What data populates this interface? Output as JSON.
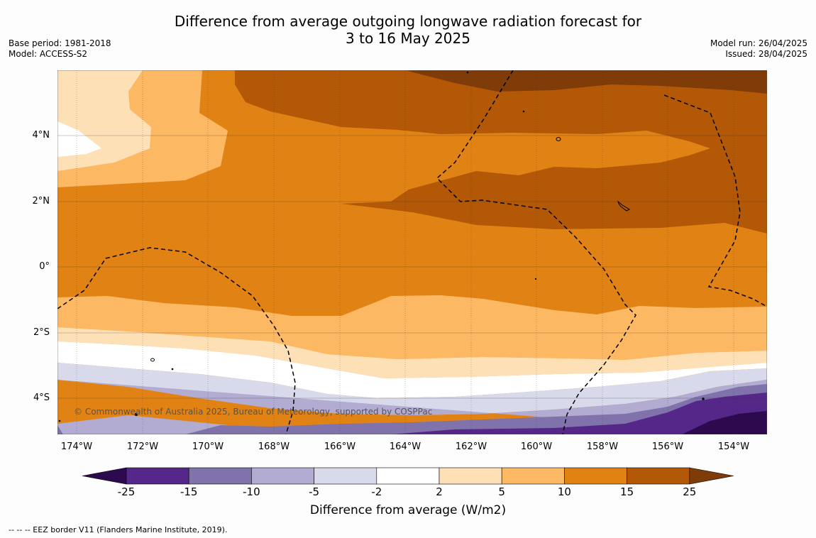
{
  "title_line1": "Difference from average outgoing longwave radiation forecast for",
  "title_line2": "3 to 16 May 2025",
  "base_period": "Base period: 1981-2018",
  "model": "Model: ACCESS-S2",
  "model_run": "Model run: 26/04/2025",
  "issued": "Issued: 28/04/2025",
  "lat_labels": [
    "4°N",
    "2°N",
    "0°",
    "2°S",
    "4°S"
  ],
  "lon_labels": [
    "174°W",
    "172°W",
    "170°W",
    "168°W",
    "166°W",
    "164°W",
    "162°W",
    "160°W",
    "158°W",
    "156°W",
    "154°W"
  ],
  "copyright": "© Commonwealth of Australia 2025, Bureau of Meteorology, supported by COSPPac",
  "colorbar": {
    "ticks": [
      "-25",
      "-15",
      "-10",
      "-5",
      "-2",
      "2",
      "5",
      "10",
      "15",
      "25"
    ],
    "colors": [
      "#2d0a4e",
      "#542788",
      "#8073ac",
      "#b2abd2",
      "#d8daeb",
      "#ffffff",
      "#fee0b6",
      "#fdb863",
      "#e08214",
      "#b35806",
      "#7f3b08"
    ],
    "title": "Difference from average (W/m2)"
  },
  "footnote": "--  --  -- EEZ border V11 (Flanders Marine Institute, 2019)."
}
